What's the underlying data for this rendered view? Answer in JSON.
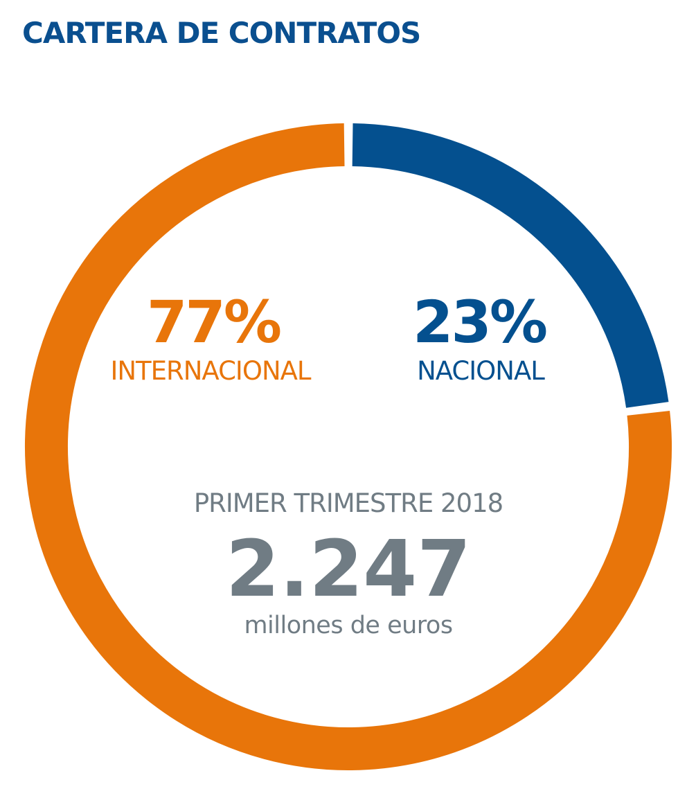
{
  "title": "CARTERA DE CONTRATOS",
  "colors": {
    "title": "#0a4f8f",
    "internacional": "#e8750a",
    "nacional": "#04508f",
    "center_text": "#707c84"
  },
  "center": {
    "period": "PRIMER TRIMESTRE 2018",
    "total": "2.247",
    "unit": "millones de euros"
  },
  "chart_data": {
    "type": "pie",
    "variant": "donut",
    "title": "CARTERA DE CONTRATOS",
    "slices": [
      {
        "label": "NACIONAL",
        "value": 23,
        "display": "23%",
        "color": "#04508f"
      },
      {
        "label": "INTERNACIONAL",
        "value": 77,
        "display": "77%",
        "color": "#e8750a"
      }
    ],
    "total": 2247,
    "total_display": "2.247",
    "unit": "millones de euros",
    "period": "PRIMER TRIMESTRE 2018"
  }
}
